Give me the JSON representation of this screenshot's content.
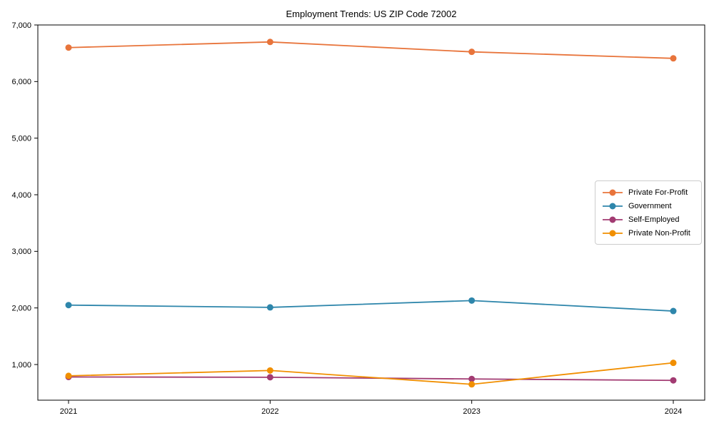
{
  "chart_data": {
    "type": "line",
    "title": "Employment Trends: US ZIP Code 72002",
    "x": [
      "2021",
      "2022",
      "2023",
      "2024"
    ],
    "series": [
      {
        "name": "Private For-Profit",
        "color": "#E8743B",
        "values": [
          6600,
          6700,
          6525,
          6410
        ]
      },
      {
        "name": "Government",
        "color": "#2E86AB",
        "values": [
          2050,
          2010,
          2130,
          1945
        ]
      },
      {
        "name": "Self-Employed",
        "color": "#A23B72",
        "values": [
          780,
          775,
          745,
          720
        ]
      },
      {
        "name": "Private Non-Profit",
        "color": "#F18F01",
        "values": [
          800,
          895,
          650,
          1030
        ]
      }
    ],
    "yticks": [
      1000,
      2000,
      3000,
      4000,
      5000,
      6000,
      7000
    ],
    "ytick_labels": [
      "1,000",
      "2,000",
      "3,000",
      "4,000",
      "5,000",
      "6,000",
      "7,000"
    ],
    "ylim": [
      370,
      7000
    ],
    "grid": false,
    "marker": "circle",
    "legend_position": "center-right"
  }
}
